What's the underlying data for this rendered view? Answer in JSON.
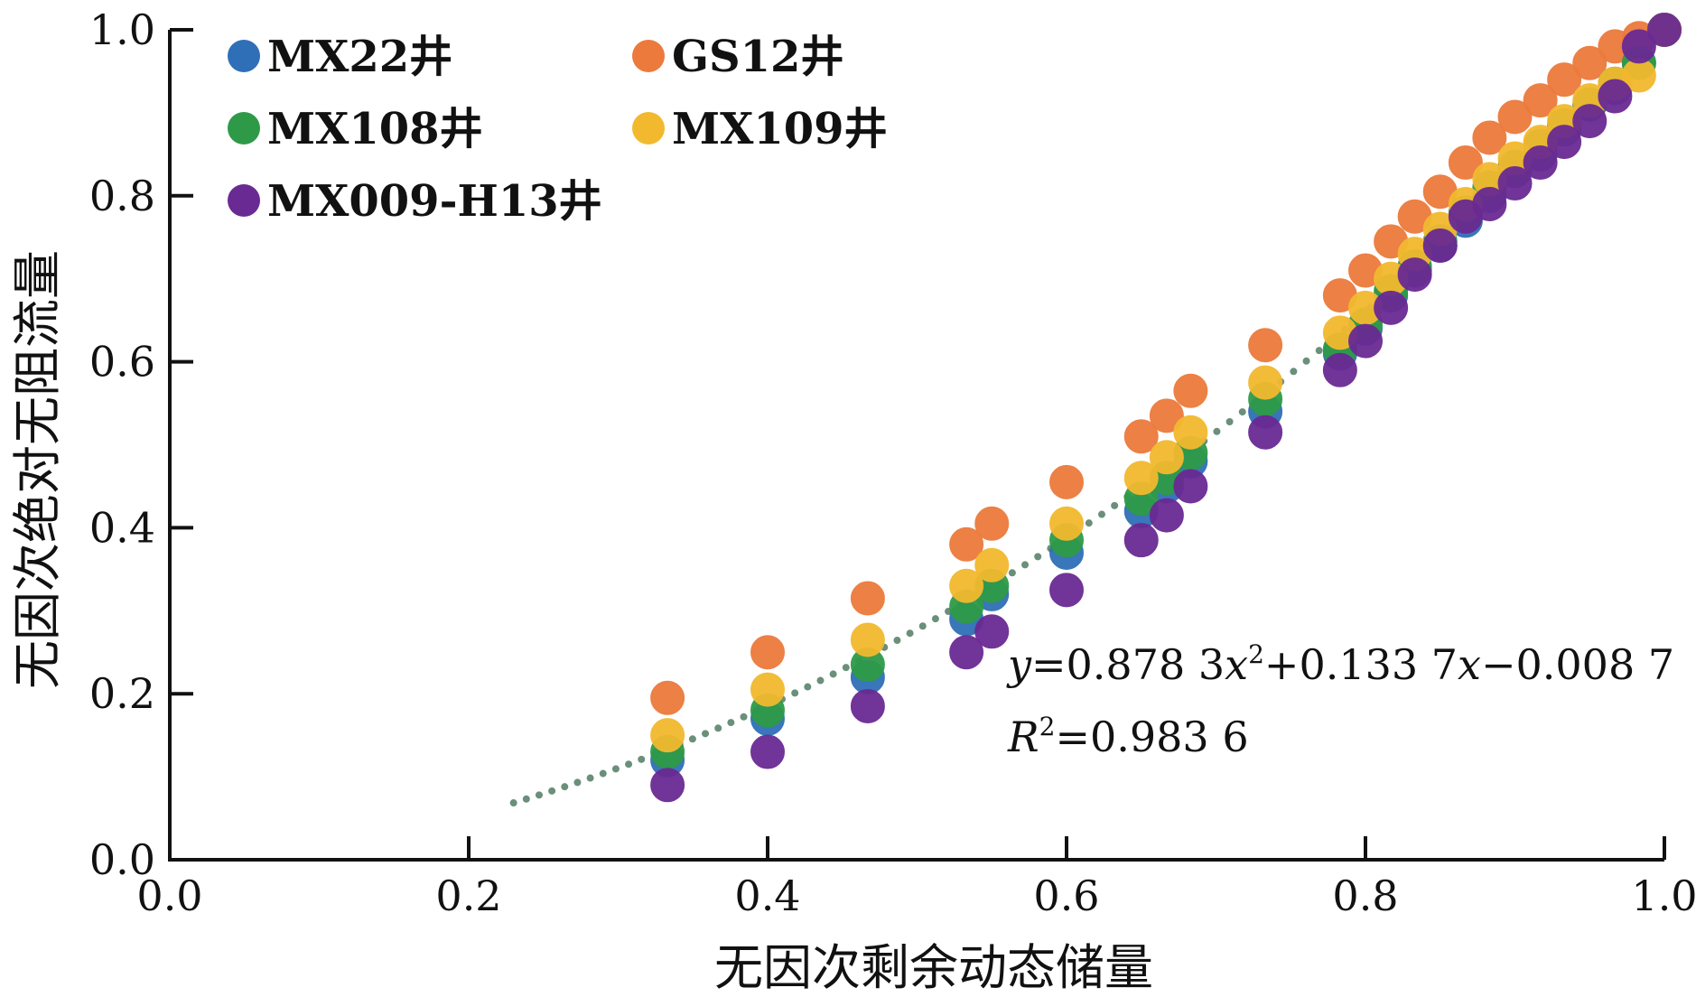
{
  "chart_data": {
    "type": "scatter",
    "xlabel": "无因次剩余动态储量",
    "ylabel": "无因次绝对无阻流量",
    "xlim": [
      0,
      1.0
    ],
    "ylim": [
      0,
      1.0
    ],
    "x_ticks": [
      "0.0",
      "0.2",
      "0.4",
      "0.6",
      "0.8",
      "1.0"
    ],
    "y_ticks": [
      "0.0",
      "0.2",
      "0.4",
      "0.6",
      "0.8",
      "1.0"
    ],
    "legend_position": "top-left",
    "series": [
      {
        "name": "MX22井",
        "color": "#2f6fb7",
        "x": [
          0.333,
          0.4,
          0.467,
          0.533,
          0.55,
          0.6,
          0.65,
          0.667,
          0.683,
          0.733,
          0.783,
          0.8,
          0.817,
          0.833,
          0.85,
          0.867,
          0.883,
          0.9,
          0.917,
          0.933,
          0.95,
          0.967,
          0.983,
          1.0
        ],
        "y": [
          0.12,
          0.17,
          0.22,
          0.29,
          0.32,
          0.37,
          0.42,
          0.45,
          0.48,
          0.54,
          0.61,
          0.64,
          0.68,
          0.71,
          0.74,
          0.77,
          0.8,
          0.83,
          0.85,
          0.88,
          0.91,
          0.93,
          0.96,
          1.0
        ]
      },
      {
        "name": "GS12井",
        "color": "#ec7a3c",
        "x": [
          0.333,
          0.4,
          0.467,
          0.533,
          0.55,
          0.6,
          0.65,
          0.667,
          0.683,
          0.733,
          0.783,
          0.8,
          0.817,
          0.833,
          0.85,
          0.867,
          0.883,
          0.9,
          0.917,
          0.933,
          0.95,
          0.967,
          0.983,
          1.0
        ],
        "y": [
          0.195,
          0.25,
          0.315,
          0.38,
          0.405,
          0.455,
          0.51,
          0.535,
          0.565,
          0.62,
          0.68,
          0.71,
          0.745,
          0.775,
          0.805,
          0.84,
          0.87,
          0.895,
          0.915,
          0.94,
          0.96,
          0.98,
          0.99,
          1.0
        ]
      },
      {
        "name": "MX108井",
        "color": "#2e9a48",
        "x": [
          0.333,
          0.4,
          0.467,
          0.533,
          0.55,
          0.6,
          0.65,
          0.667,
          0.683,
          0.733,
          0.783,
          0.8,
          0.817,
          0.833,
          0.85,
          0.867,
          0.883,
          0.9,
          0.917,
          0.933,
          0.95,
          0.967,
          0.983,
          1.0
        ],
        "y": [
          0.13,
          0.18,
          0.235,
          0.305,
          0.33,
          0.385,
          0.435,
          0.46,
          0.49,
          0.555,
          0.615,
          0.645,
          0.685,
          0.715,
          0.745,
          0.78,
          0.81,
          0.835,
          0.86,
          0.885,
          0.91,
          0.935,
          0.96,
          1.0
        ]
      },
      {
        "name": "MX109井",
        "color": "#f2b92f",
        "x": [
          0.333,
          0.4,
          0.467,
          0.533,
          0.55,
          0.6,
          0.65,
          0.667,
          0.683,
          0.733,
          0.783,
          0.8,
          0.817,
          0.833,
          0.85,
          0.867,
          0.883,
          0.9,
          0.917,
          0.933,
          0.95,
          0.967,
          0.983,
          1.0
        ],
        "y": [
          0.15,
          0.205,
          0.265,
          0.33,
          0.355,
          0.405,
          0.46,
          0.485,
          0.515,
          0.575,
          0.635,
          0.665,
          0.7,
          0.73,
          0.76,
          0.79,
          0.82,
          0.845,
          0.865,
          0.89,
          0.915,
          0.935,
          0.945,
          1.0
        ]
      },
      {
        "name": "MX009-H13井",
        "color": "#6a2a93",
        "x": [
          0.333,
          0.4,
          0.467,
          0.533,
          0.55,
          0.6,
          0.65,
          0.667,
          0.683,
          0.733,
          0.783,
          0.8,
          0.817,
          0.833,
          0.85,
          0.867,
          0.883,
          0.9,
          0.917,
          0.933,
          0.95,
          0.967,
          0.983,
          1.0
        ],
        "y": [
          0.09,
          0.13,
          0.185,
          0.25,
          0.275,
          0.325,
          0.385,
          0.415,
          0.45,
          0.515,
          0.59,
          0.625,
          0.665,
          0.705,
          0.74,
          0.775,
          0.79,
          0.815,
          0.84,
          0.865,
          0.89,
          0.92,
          0.98,
          1.0
        ]
      }
    ],
    "fit_curve": {
      "a": 0.8783,
      "b": 0.1337,
      "c": -0.0087,
      "x_start": 0.23,
      "x_end": 1.0,
      "color": "#6a8f7a"
    },
    "annotations": {
      "equation": {
        "y": "y",
        "eq1": "=0.878 3",
        "x1": "x",
        "sup": "2",
        "eq2": "+0.133 7",
        "x2": "x",
        "eq3": "−0.008 7"
      },
      "r2": {
        "r": "R",
        "sup": "2",
        "val": "=0.983 6"
      }
    }
  }
}
